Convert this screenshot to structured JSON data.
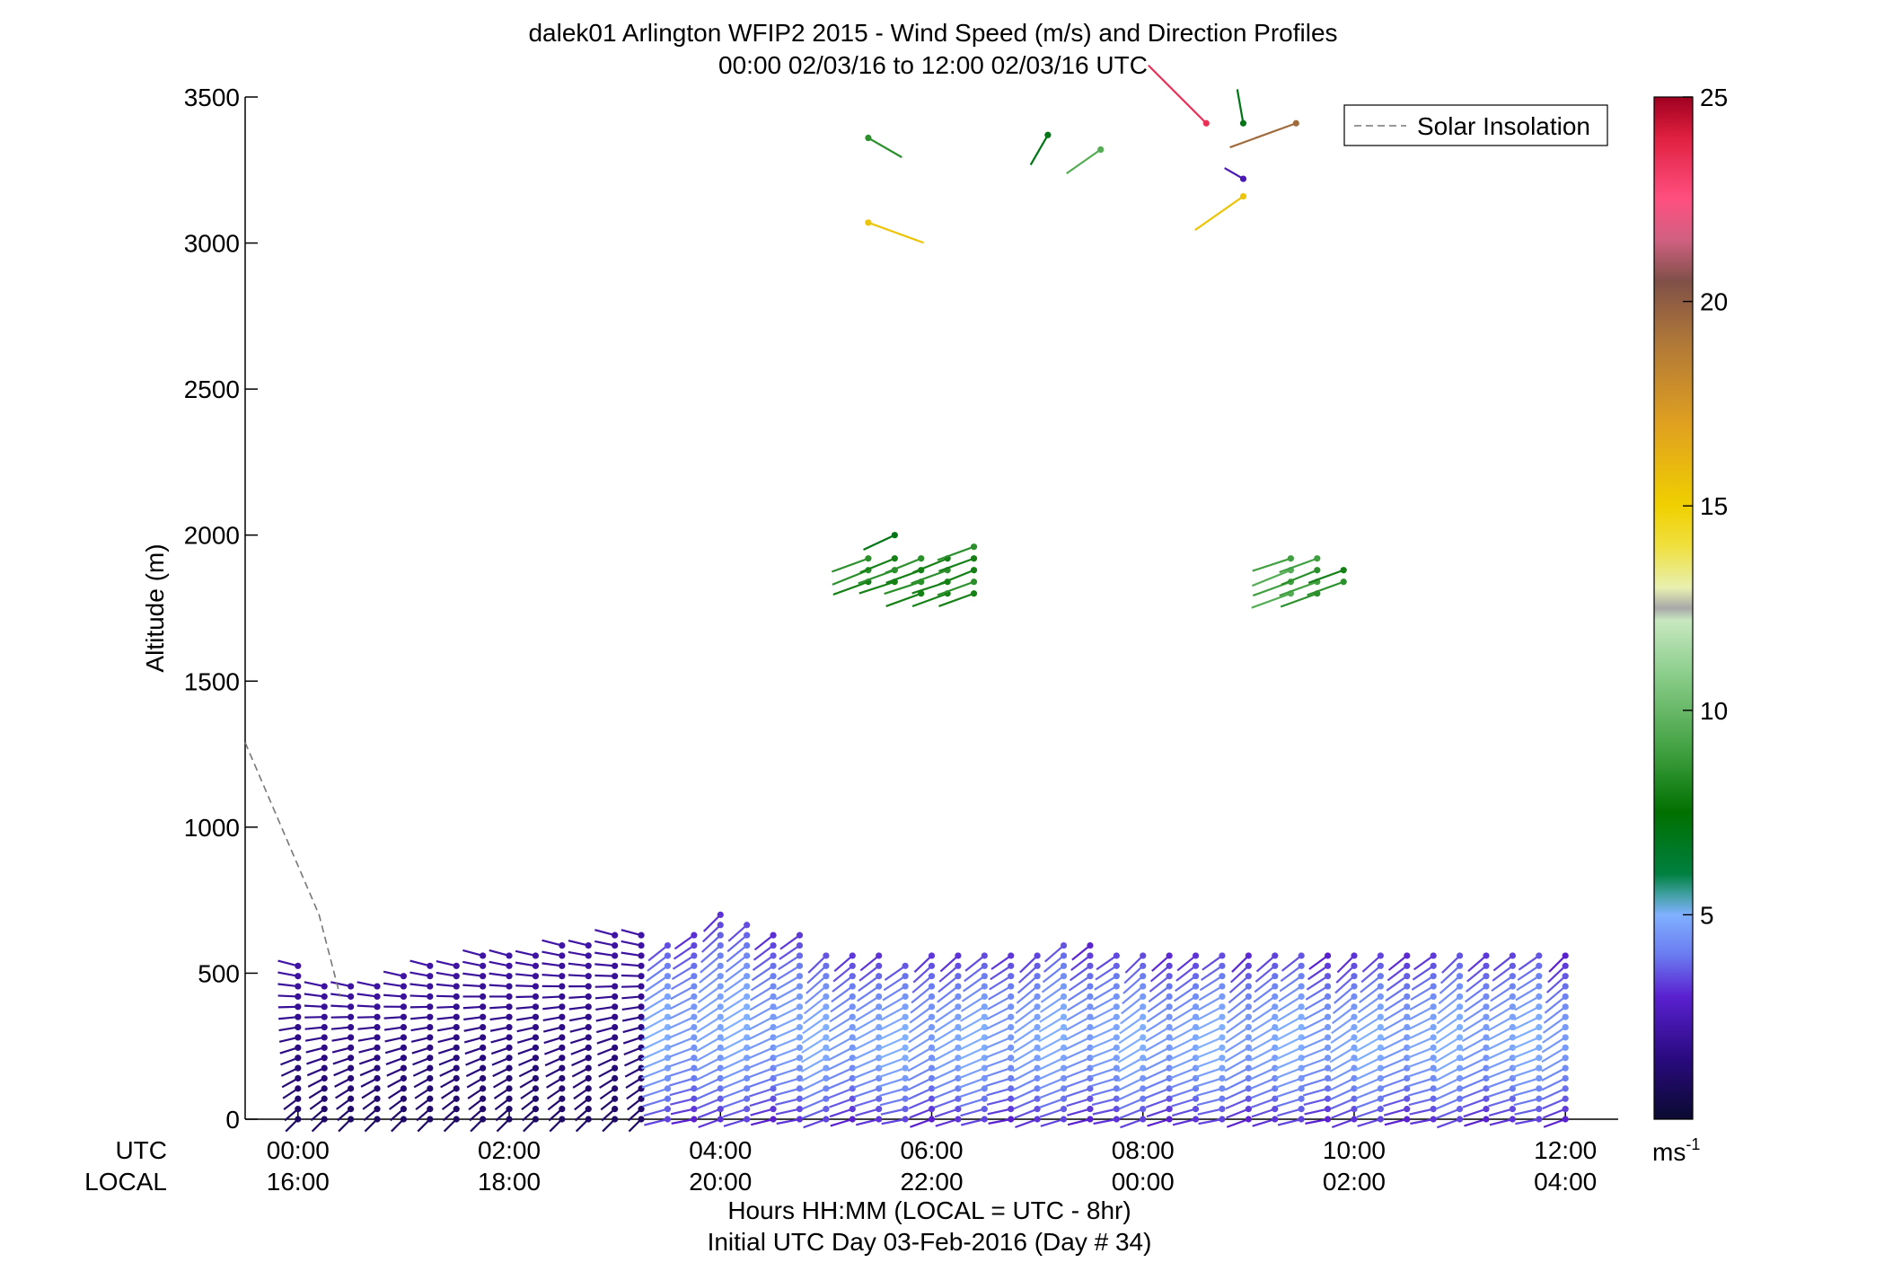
{
  "title_line1": "dalek01 Arlington WFIP2 2015 - Wind Speed (m/s) and Direction Profiles",
  "title_line2": "00:00 02/03/16 to 12:00 02/03/16  UTC",
  "legend_label": "Solar Insolation",
  "utc_row_label": "UTC",
  "local_row_label": "LOCAL",
  "xlabel_line1": "Hours HH:MM  (LOCAL = UTC - 8hr)",
  "xlabel_line2": "Initial UTC Day 03-Feb-2016 (Day # 34)",
  "colorbar_unit": "ms",
  "colorbar_unit_exp": "-1",
  "chart_data": {
    "type": "scatter",
    "title": "dalek01 Arlington WFIP2 2015 - Wind Speed (m/s) and Direction Profiles",
    "subtitle": "00:00 02/03/16 to 12:00 02/03/16  UTC",
    "xlabel": "Hours HH:MM  (LOCAL = UTC - 8hr)",
    "ylabel": "Altitude (m)",
    "ylim": [
      0,
      3500
    ],
    "xlim": [
      -0.5,
      12.5
    ],
    "yticks": [
      0,
      500,
      1000,
      1500,
      2000,
      2500,
      3000,
      3500
    ],
    "xticks_utc": [
      {
        "x": 0,
        "label": "00:00"
      },
      {
        "x": 2,
        "label": "02:00"
      },
      {
        "x": 4,
        "label": "04:00"
      },
      {
        "x": 6,
        "label": "06:00"
      },
      {
        "x": 8,
        "label": "08:00"
      },
      {
        "x": 10,
        "label": "10:00"
      },
      {
        "x": 12,
        "label": "12:00"
      }
    ],
    "xticks_local": [
      "16:00",
      "18:00",
      "20:00",
      "22:00",
      "00:00",
      "02:00",
      "04:00"
    ],
    "colorbar": {
      "label": "ms-1",
      "range": [
        0,
        25
      ],
      "ticks": [
        5,
        10,
        15,
        20,
        25
      ],
      "stops": [
        {
          "v": 0,
          "c": "#0a0a30"
        },
        {
          "v": 1.5,
          "c": "#2a0a80"
        },
        {
          "v": 3,
          "c": "#5a20d0"
        },
        {
          "v": 4,
          "c": "#6a7af0"
        },
        {
          "v": 5,
          "c": "#80b0ff"
        },
        {
          "v": 5.5,
          "c": "#40a0a0"
        },
        {
          "v": 6,
          "c": "#008040"
        },
        {
          "v": 7.5,
          "c": "#007000"
        },
        {
          "v": 9,
          "c": "#40a040"
        },
        {
          "v": 11,
          "c": "#90d090"
        },
        {
          "v": 12.2,
          "c": "#c8e8c0"
        },
        {
          "v": 12.5,
          "c": "#a8a8a8"
        },
        {
          "v": 13,
          "c": "#e8f0b0"
        },
        {
          "v": 14,
          "c": "#f0e040"
        },
        {
          "v": 15,
          "c": "#f0d000"
        },
        {
          "v": 17,
          "c": "#e0a020"
        },
        {
          "v": 19,
          "c": "#b07838"
        },
        {
          "v": 20.5,
          "c": "#805048"
        },
        {
          "v": 21.5,
          "c": "#d06080"
        },
        {
          "v": 22.5,
          "c": "#ff5080"
        },
        {
          "v": 24,
          "c": "#e02040"
        },
        {
          "v": 25,
          "c": "#a00020"
        }
      ]
    },
    "legend": {
      "position": "top-right",
      "entries": [
        "Solar Insolation"
      ]
    },
    "solar_insolation": {
      "x": [
        -0.5,
        0.2,
        0.4
      ],
      "y": [
        1290,
        700,
        420
      ]
    },
    "profile_times": [
      0.0,
      0.25,
      0.5,
      0.75,
      1.0,
      1.25,
      1.5,
      1.75,
      2.0,
      2.25,
      2.5,
      2.75,
      3.0,
      3.25,
      3.5,
      3.75,
      4.0,
      4.25,
      4.5,
      4.75,
      5.0,
      5.25,
      5.5,
      5.75,
      6.0,
      6.25,
      6.5,
      6.75,
      7.0,
      7.25,
      7.5,
      7.75,
      8.0,
      8.25,
      8.5,
      8.75,
      9.0,
      9.25,
      9.5,
      9.75,
      10.0,
      10.25,
      10.5,
      10.75,
      11.0,
      11.25,
      11.5,
      11.75,
      12.0
    ],
    "profile_tops": [
      530,
      480,
      480,
      480,
      510,
      530,
      540,
      560,
      560,
      580,
      600,
      610,
      630,
      630,
      610,
      650,
      700,
      680,
      650,
      640,
      580,
      590,
      560,
      550,
      590,
      560,
      570,
      590,
      580,
      620,
      600,
      590,
      570,
      570,
      560,
      570,
      570,
      580,
      580,
      560,
      560,
      560,
      570,
      570,
      580,
      590,
      580,
      580,
      560
    ],
    "gate_spacing_m": 35,
    "low_level": {
      "early_speed_ms": 1.0,
      "early_dir_deg": 225,
      "late_speed_ms": 3.0,
      "late_dir_deg": 250,
      "transition_hour": 3.5
    },
    "upper_barbs": [
      {
        "x": 5.4,
        "y": 1840,
        "speed": 8.0,
        "dir": 250
      },
      {
        "x": 5.4,
        "y": 1880,
        "speed": 8.5,
        "dir": 248
      },
      {
        "x": 5.4,
        "y": 1920,
        "speed": 8.5,
        "dir": 250
      },
      {
        "x": 5.65,
        "y": 1840,
        "speed": 8.0,
        "dir": 252
      },
      {
        "x": 5.65,
        "y": 1880,
        "speed": 8.5,
        "dir": 250
      },
      {
        "x": 5.65,
        "y": 1920,
        "speed": 8.0,
        "dir": 248
      },
      {
        "x": 5.65,
        "y": 2000,
        "speed": 7.0,
        "dir": 245
      },
      {
        "x": 5.9,
        "y": 1800,
        "speed": 8.0,
        "dir": 250
      },
      {
        "x": 5.9,
        "y": 1840,
        "speed": 8.5,
        "dir": 252
      },
      {
        "x": 5.9,
        "y": 1880,
        "speed": 8.0,
        "dir": 250
      },
      {
        "x": 5.9,
        "y": 1920,
        "speed": 8.5,
        "dir": 248
      },
      {
        "x": 6.15,
        "y": 1800,
        "speed": 8.0,
        "dir": 250
      },
      {
        "x": 6.15,
        "y": 1840,
        "speed": 8.0,
        "dir": 252
      },
      {
        "x": 6.15,
        "y": 1880,
        "speed": 8.5,
        "dir": 250
      },
      {
        "x": 6.15,
        "y": 1920,
        "speed": 8.0,
        "dir": 248
      },
      {
        "x": 6.4,
        "y": 1800,
        "speed": 8.0,
        "dir": 250
      },
      {
        "x": 6.4,
        "y": 1840,
        "speed": 8.5,
        "dir": 250
      },
      {
        "x": 6.4,
        "y": 1880,
        "speed": 8.0,
        "dir": 248
      },
      {
        "x": 6.4,
        "y": 1920,
        "speed": 8.0,
        "dir": 250
      },
      {
        "x": 6.4,
        "y": 1960,
        "speed": 8.5,
        "dir": 250
      },
      {
        "x": 9.4,
        "y": 1800,
        "speed": 9.5,
        "dir": 250
      },
      {
        "x": 9.4,
        "y": 1840,
        "speed": 9.0,
        "dir": 250
      },
      {
        "x": 9.4,
        "y": 1880,
        "speed": 9.5,
        "dir": 248
      },
      {
        "x": 9.4,
        "y": 1920,
        "speed": 9.0,
        "dir": 252
      },
      {
        "x": 9.65,
        "y": 1800,
        "speed": 8.5,
        "dir": 250
      },
      {
        "x": 9.65,
        "y": 1840,
        "speed": 9.0,
        "dir": 250
      },
      {
        "x": 9.65,
        "y": 1880,
        "speed": 8.5,
        "dir": 248
      },
      {
        "x": 9.65,
        "y": 1920,
        "speed": 9.0,
        "dir": 250
      },
      {
        "x": 9.9,
        "y": 1840,
        "speed": 8.5,
        "dir": 250
      },
      {
        "x": 9.9,
        "y": 1880,
        "speed": 8.0,
        "dir": 250
      }
    ],
    "sparse_barbs": [
      {
        "x": 5.4,
        "y": 3360,
        "speed": 8.5,
        "dir": 120
      },
      {
        "x": 5.4,
        "y": 3070,
        "speed": 15.5,
        "dir": 110
      },
      {
        "x": 7.1,
        "y": 3370,
        "speed": 7.0,
        "dir": 210
      },
      {
        "x": 7.6,
        "y": 3320,
        "speed": 9.5,
        "dir": 235
      },
      {
        "x": 8.6,
        "y": 3410,
        "speed": 23.5,
        "dir": 315
      },
      {
        "x": 8.95,
        "y": 3410,
        "speed": 7.0,
        "dir": 350
      },
      {
        "x": 8.95,
        "y": 3220,
        "speed": 2.5,
        "dir": 300
      },
      {
        "x": 8.95,
        "y": 3160,
        "speed": 15.5,
        "dir": 235
      },
      {
        "x": 9.45,
        "y": 3410,
        "speed": 19.5,
        "dir": 250
      }
    ]
  }
}
